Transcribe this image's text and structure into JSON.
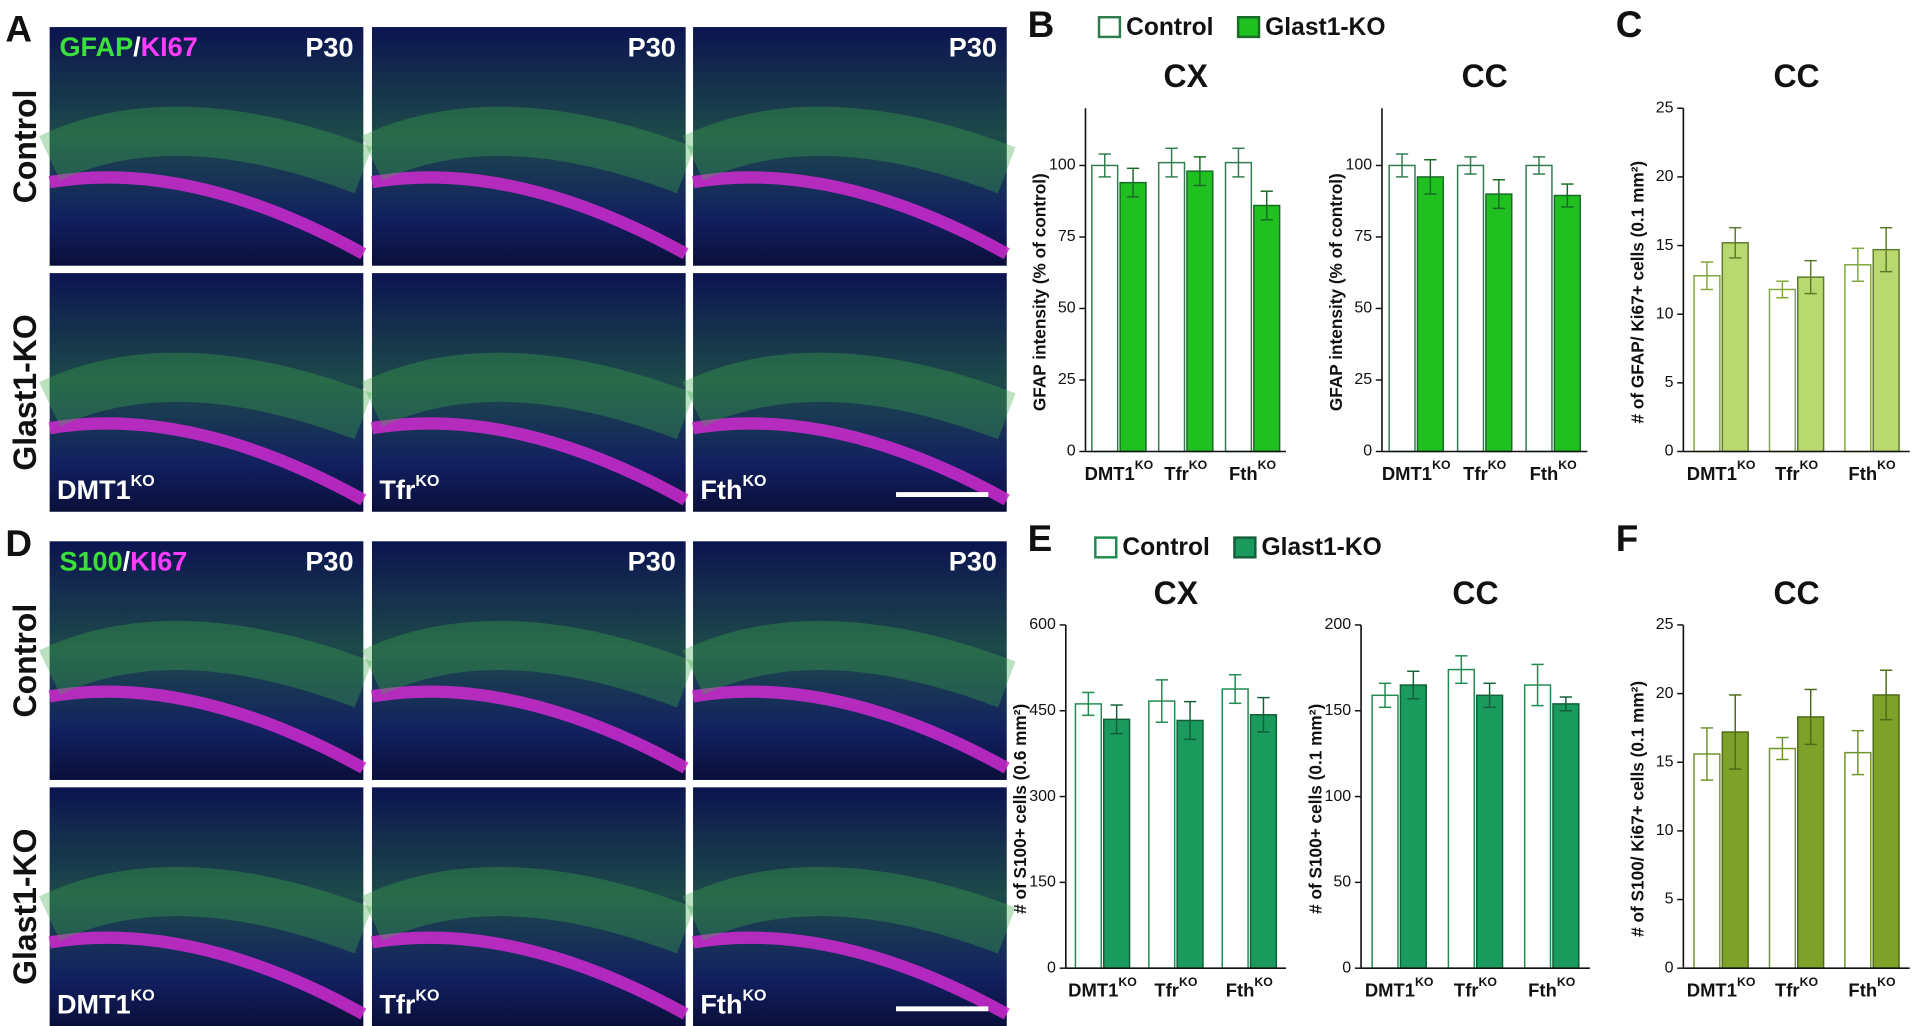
{
  "micrographs": [
    {
      "panel": "A",
      "marker_1": "GFAP",
      "separator": "/",
      "marker_2": "KI67",
      "age": "P30",
      "rows": [
        "Control",
        "Glast1-KO"
      ],
      "columns": [
        "DMT1",
        "Tfr",
        "Fth"
      ],
      "column_superscripts": [
        "KO",
        "KO",
        "KO"
      ]
    },
    {
      "panel": "D",
      "marker_1": "S100",
      "separator": "/",
      "marker_2": "KI67",
      "age": "P30",
      "rows": [
        "Control",
        "Glast1-KO"
      ],
      "columns": [
        "DMT1",
        "Tfr",
        "Fth"
      ],
      "column_superscripts": [
        "KO",
        "KO",
        "KO"
      ]
    }
  ],
  "chart_data": [
    {
      "panel": "B",
      "type": "bar",
      "title": "CX",
      "y_label": "GFAP intensity (% of control)",
      "categories": [
        "DMT1",
        "Tfr",
        "Fth"
      ],
      "category_superscripts": [
        "KO",
        "KO",
        "KO"
      ],
      "series": [
        {
          "name": "Control",
          "color": "#ffffff",
          "edgecolor": "#2e7d4f",
          "values": [
            100,
            101,
            101
          ],
          "errors": [
            4,
            5,
            5
          ]
        },
        {
          "name": "Glast1-KO",
          "color": "#1fc01f",
          "edgecolor": "#1a6b2a",
          "values": [
            94,
            98,
            86
          ],
          "errors": [
            5,
            5,
            5
          ]
        }
      ],
      "ylim": [
        0,
        120
      ],
      "yticks": [
        0,
        25,
        50,
        75,
        100
      ]
    },
    {
      "type": "bar",
      "title": "CC",
      "y_label": "GFAP intensity (% of control)",
      "categories": [
        "DMT1",
        "Tfr",
        "Fth"
      ],
      "category_superscripts": [
        "KO",
        "KO",
        "KO"
      ],
      "series": [
        {
          "color": "#ffffff",
          "edgecolor": "#2e7d4f",
          "values": [
            100,
            100,
            100
          ],
          "errors": [
            4,
            3,
            3
          ]
        },
        {
          "color": "#1fc01f",
          "edgecolor": "#1a6b2a",
          "values": [
            96,
            90,
            89.5
          ],
          "errors": [
            6,
            5,
            4
          ]
        }
      ],
      "ylim": [
        0,
        120
      ],
      "yticks": [
        0,
        25,
        50,
        75,
        100
      ]
    },
    {
      "panel": "C",
      "type": "bar",
      "title": "CC",
      "y_label": "# of GFAP/ Ki67+ cells (0.1 mm²)",
      "categories": [
        "DMT1",
        "Tfr",
        "Fth"
      ],
      "category_superscripts": [
        "KO",
        "KO",
        "KO"
      ],
      "series": [
        {
          "color": "#ffffff",
          "edgecolor": "#7fa83a",
          "values": [
            12.8,
            11.8,
            13.6
          ],
          "errors": [
            1,
            0.6,
            1.2
          ]
        },
        {
          "color": "#b9d870",
          "edgecolor": "#5d7a2a",
          "values": [
            15.2,
            12.7,
            14.7
          ],
          "errors": [
            1.1,
            1.2,
            1.6
          ]
        }
      ],
      "ylim": [
        0,
        25
      ],
      "yticks": [
        0,
        5,
        10,
        15,
        20,
        25
      ]
    },
    {
      "panel": "E",
      "type": "bar",
      "title": "CX",
      "y_label": "# of S100+ cells (0.6 mm²)",
      "categories": [
        "DMT1",
        "Tfr",
        "Fth"
      ],
      "category_superscripts": [
        "KO",
        "KO",
        "KO"
      ],
      "series": [
        {
          "name": "Control",
          "color": "#ffffff",
          "edgecolor": "#1f8a50",
          "values": [
            462,
            467,
            488
          ],
          "errors": [
            20,
            37,
            25
          ]
        },
        {
          "name": "Glast1-KO",
          "color": "#1a9a5c",
          "edgecolor": "#125f38",
          "values": [
            435,
            433,
            443
          ],
          "errors": [
            25,
            33,
            30
          ]
        }
      ],
      "ylim": [
        0,
        600
      ],
      "yticks": [
        0,
        150,
        300,
        450,
        600
      ]
    },
    {
      "type": "bar",
      "title": "CC",
      "y_label": "# of S100+ cells (0.1 mm²)",
      "categories": [
        "DMT1",
        "Tfr",
        "Fth"
      ],
      "category_superscripts": [
        "KO",
        "KO",
        "KO"
      ],
      "series": [
        {
          "color": "#ffffff",
          "edgecolor": "#1f8a50",
          "values": [
            159,
            174,
            165
          ],
          "errors": [
            7,
            8,
            12
          ]
        },
        {
          "color": "#1a9a5c",
          "edgecolor": "#125f38",
          "values": [
            165,
            159,
            154
          ],
          "errors": [
            8,
            7,
            4
          ]
        }
      ],
      "ylim": [
        0,
        200
      ],
      "yticks": [
        0,
        50,
        100,
        150,
        200
      ]
    },
    {
      "panel": "F",
      "type": "bar",
      "title": "CC",
      "y_label": "# of S100/ Ki67+ cells (0.1 mm²)",
      "categories": [
        "DMT1",
        "Tfr",
        "Fth"
      ],
      "category_superscripts": [
        "KO",
        "KO",
        "KO"
      ],
      "series": [
        {
          "color": "#ffffff",
          "edgecolor": "#6f9428",
          "values": [
            15.6,
            16,
            15.7
          ],
          "errors": [
            1.9,
            0.8,
            1.6
          ]
        },
        {
          "color": "#7ea12a",
          "edgecolor": "#4e6a18",
          "values": [
            17.2,
            18.3,
            19.9
          ],
          "errors": [
            2.7,
            2,
            1.8
          ]
        }
      ],
      "ylim": [
        0,
        25
      ],
      "yticks": [
        0,
        5,
        10,
        15,
        20,
        25
      ]
    }
  ]
}
